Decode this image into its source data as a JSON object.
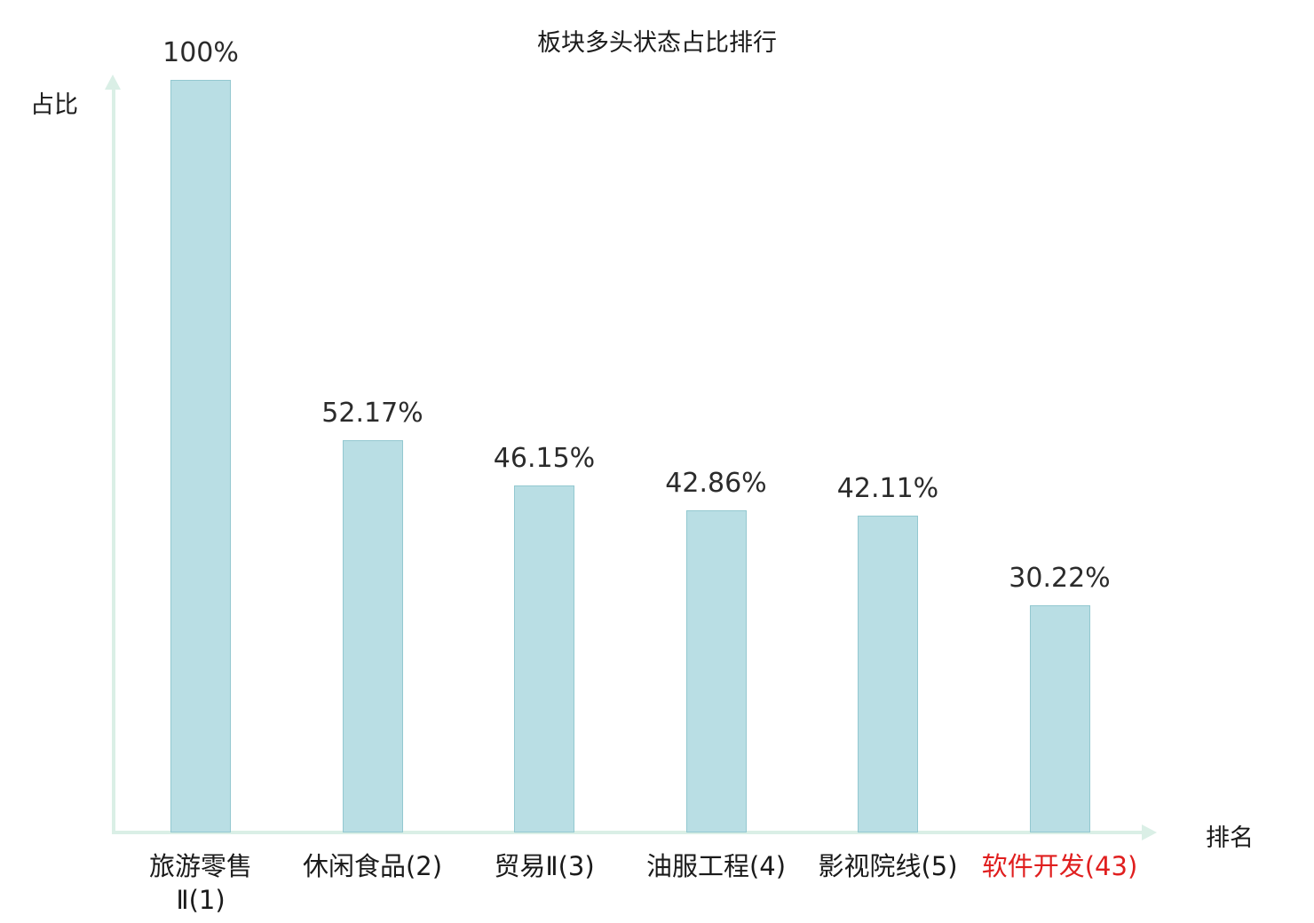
{
  "chart_data": {
    "type": "bar",
    "title": "板块多头状态占比排行",
    "xlabel": "排名",
    "ylabel": "占比",
    "categories": [
      "旅游零售\nⅡ(1)",
      "休闲食品(2)",
      "贸易Ⅱ(3)",
      "油服工程(4)",
      "影视院线(5)",
      "软件开发(43)"
    ],
    "values": [
      100,
      52.17,
      46.15,
      42.86,
      42.11,
      30.22
    ],
    "value_labels": [
      "100%",
      "52.17%",
      "46.15%",
      "42.86%",
      "42.11%",
      "30.22%"
    ],
    "highlight_index": 5,
    "highlight_color": "#e01f1f",
    "text_color": "#1a1a1a",
    "bar_fill": "#b9dee4",
    "bar_border": "#93c8d0",
    "axis_color": "#daefe6",
    "ylim": [
      0,
      100
    ],
    "grid": false,
    "legend": false
  }
}
